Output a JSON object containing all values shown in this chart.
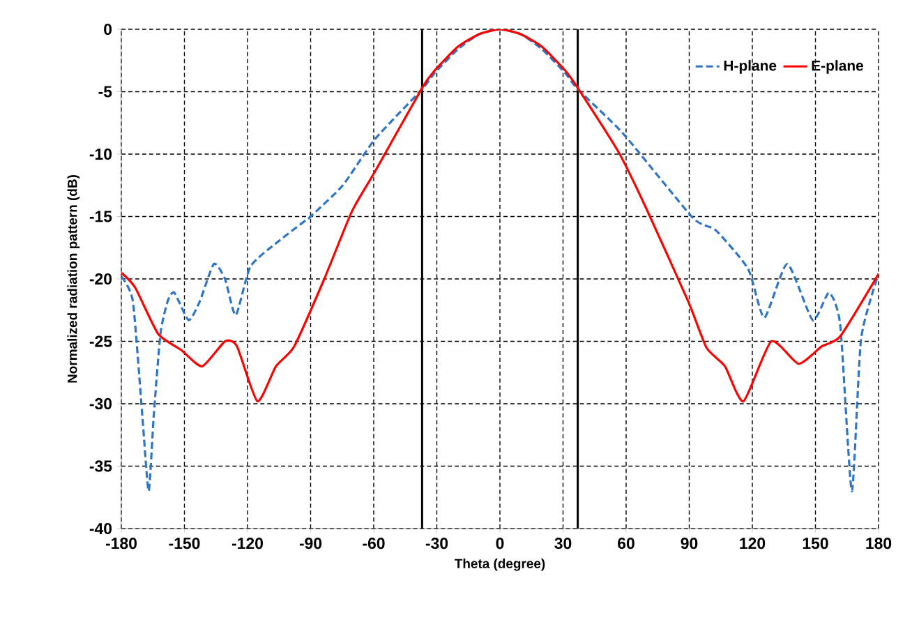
{
  "chart_data": {
    "type": "line",
    "xlabel": "Theta (degree)",
    "ylabel": "Normalized radiation pattern (dB)",
    "xlim": [
      -180,
      180
    ],
    "ylim": [
      -40,
      0
    ],
    "xticks": [
      -180,
      -150,
      -120,
      -90,
      -60,
      -30,
      0,
      30,
      60,
      90,
      120,
      150,
      180
    ],
    "yticks": [
      -40,
      -35,
      -30,
      -25,
      -20,
      -15,
      -10,
      -5,
      0
    ],
    "grid": true,
    "legend": "top right",
    "marker": "none",
    "ref_lines": [
      {
        "axis": "x",
        "value": -37,
        "color": "#000000"
      },
      {
        "axis": "x",
        "value": 37,
        "color": "#000000"
      }
    ],
    "series": [
      {
        "name": "H-plane",
        "color": "#2e75c6",
        "line_style": "dashed",
        "x": [
          -180,
          -174.5,
          -170,
          -167,
          -164.6,
          -161.4,
          -158,
          -154.8,
          -148,
          -142.7,
          -136,
          -130.7,
          -125.6,
          -118.6,
          -105.4,
          -92.3,
          -90,
          -74.7,
          -59.4,
          -37,
          -31,
          -20,
          -10,
          0,
          10,
          20,
          31,
          37,
          58.8,
          91.7,
          102.6,
          118,
          125.7,
          136.6,
          148.7,
          156.4,
          161.8,
          167.3,
          171.7,
          180
        ],
        "values": [
          -19.8,
          -21.8,
          -31,
          -37,
          -31,
          -24.4,
          -21.8,
          -21.1,
          -23.3,
          -21.8,
          -18.8,
          -20,
          -22.9,
          -19,
          -17,
          -15.3,
          -15,
          -12.5,
          -8.8,
          -4.8,
          -3.5,
          -1.6,
          -0.4,
          0,
          -0.4,
          -1.6,
          -3.5,
          -4.8,
          -8.4,
          -15.1,
          -16.1,
          -19.2,
          -23.1,
          -18.8,
          -23.3,
          -21.1,
          -23.7,
          -37,
          -24.8,
          -19.6
        ]
      },
      {
        "name": "E-plane",
        "color": "#ff0000",
        "line_style": "solid",
        "x": [
          -180,
          -173.4,
          -162.5,
          -151.5,
          -141.6,
          -130.7,
          -125,
          -115.3,
          -106.5,
          -97.8,
          -83.5,
          -70.4,
          -59.4,
          -37,
          -31,
          -20,
          -10,
          0,
          10,
          20,
          31,
          37,
          56.6,
          69.7,
          89.5,
          98.2,
          107,
          115.8,
          129,
          142,
          153,
          161.8,
          180
        ],
        "values": [
          -19.5,
          -20.7,
          -24.4,
          -25.7,
          -27,
          -25,
          -25.4,
          -29.8,
          -27,
          -25.4,
          -20,
          -14.6,
          -11.4,
          -4.7,
          -3.3,
          -1.4,
          -0.4,
          0,
          -0.4,
          -1.4,
          -3.3,
          -4.7,
          -9.9,
          -14.4,
          -21.8,
          -25.5,
          -27,
          -29.8,
          -25,
          -26.8,
          -25.4,
          -24.6,
          -19.6
        ]
      }
    ]
  }
}
